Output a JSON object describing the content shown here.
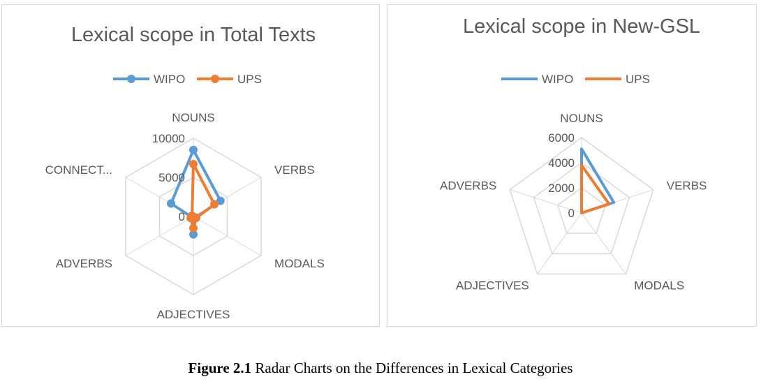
{
  "colors": {
    "wipo": "#5B9BD5",
    "ups": "#ED7D31",
    "grid": "#D9D9D9",
    "text": "#595959"
  },
  "chart_data": [
    {
      "type": "radar",
      "title": "Lexical scope in Total Texts",
      "legend_position": "top",
      "axes": [
        "NOUNS",
        "VERBS",
        "MODALS",
        "ADJECTIVES",
        "ADVERBS",
        "CONNECT..."
      ],
      "rlim": [
        0,
        10000
      ],
      "ticks": [
        "0",
        "5000",
        "10000"
      ],
      "tick_values": [
        0,
        5000,
        10000
      ],
      "grid": true,
      "series": [
        {
          "name": "WIPO",
          "values": [
            8500,
            4000,
            300,
            2300,
            200,
            3300
          ],
          "markers": true
        },
        {
          "name": "UPS",
          "values": [
            6700,
            3100,
            400,
            1500,
            400,
            200
          ],
          "markers": true
        }
      ]
    },
    {
      "type": "radar",
      "title": "Lexical scope in New-GSL",
      "legend_position": "top",
      "axes": [
        "NOUNS",
        "VERBS",
        "MODALS",
        "ADJECTIVES",
        "ADVERBS"
      ],
      "rlim": [
        0,
        6000
      ],
      "ticks": [
        "0",
        "2000",
        "4000",
        "6000"
      ],
      "tick_values": [
        0,
        2000,
        4000,
        6000
      ],
      "grid": true,
      "series": [
        {
          "name": "WIPO",
          "values": [
            5100,
            2700,
            0,
            0,
            0
          ],
          "markers": false
        },
        {
          "name": "UPS",
          "values": [
            3800,
            2300,
            0,
            0,
            0
          ],
          "markers": false
        }
      ]
    }
  ],
  "caption": {
    "bold": "Figure 2.1",
    "text": " Radar Charts on the Differences in Lexical Categories"
  }
}
